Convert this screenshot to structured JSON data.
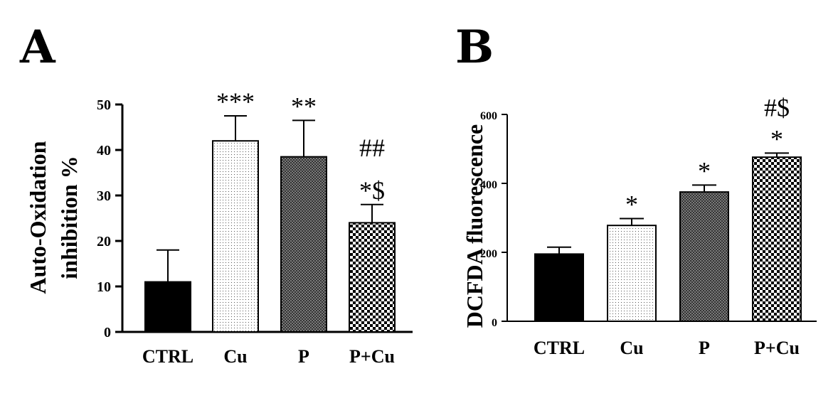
{
  "chart_data": [
    {
      "type": "bar",
      "panel": "A",
      "ylabel_line1": "Auto-Oxidation",
      "ylabel_line2": "inhibition %",
      "xlabel": "",
      "ylim": [
        0,
        50
      ],
      "yticks": [
        0,
        10,
        20,
        30,
        40,
        50
      ],
      "categories": [
        "CTRL",
        "Cu",
        "P",
        "P+Cu"
      ],
      "values": [
        11,
        42,
        38.5,
        24
      ],
      "errors": [
        7,
        5.5,
        8,
        4
      ],
      "annotations": [
        [],
        [
          "***"
        ],
        [
          "**"
        ],
        [
          "*$",
          "##"
        ]
      ],
      "fills": [
        "solid-black",
        "fine-dots",
        "dense-checker",
        "checkerboard"
      ]
    },
    {
      "type": "bar",
      "panel": "B",
      "ylabel": "DCFDA fluorescence",
      "xlabel": "",
      "ylim": [
        0,
        600
      ],
      "yticks": [
        0,
        200,
        400,
        600
      ],
      "categories": [
        "CTRL",
        "Cu",
        "P",
        "P+Cu"
      ],
      "values": [
        195,
        278,
        375,
        476
      ],
      "errors": [
        20,
        20,
        20,
        12
      ],
      "annotations": [
        [],
        [
          "*"
        ],
        [
          "*"
        ],
        [
          "*",
          "#$"
        ]
      ],
      "fills": [
        "solid-black",
        "fine-dots",
        "dense-checker",
        "checkerboard"
      ]
    }
  ],
  "colors": {
    "ink": "#000000",
    "background": "#ffffff"
  }
}
